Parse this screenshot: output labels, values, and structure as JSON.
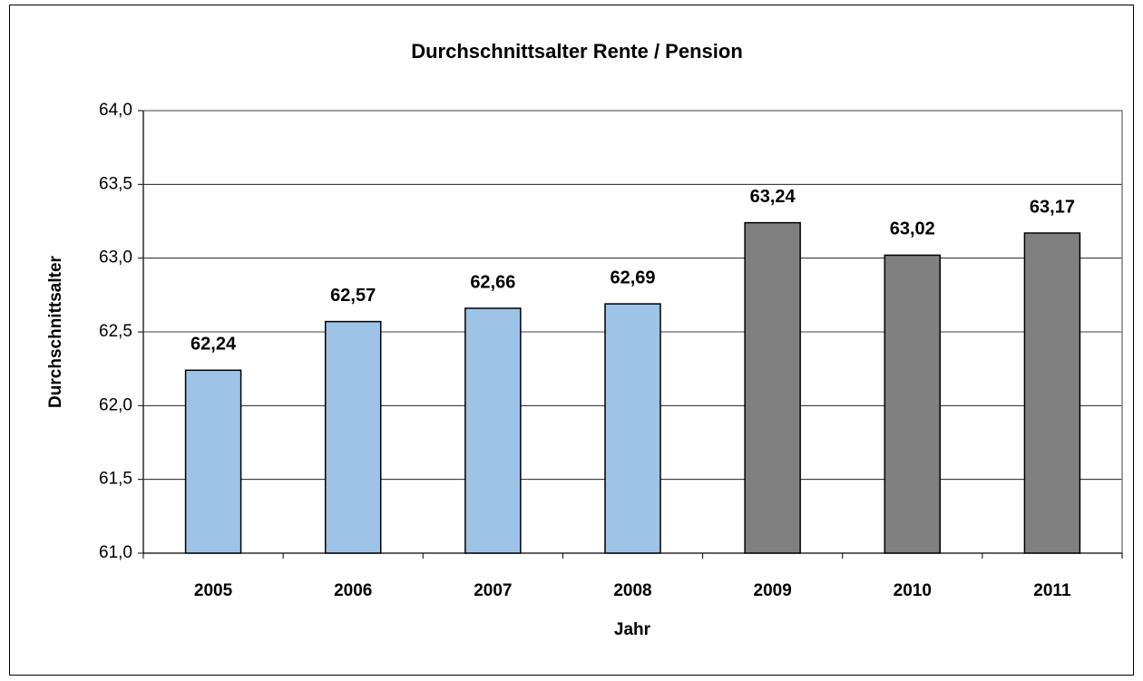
{
  "chart_data": {
    "type": "bar",
    "title": "Durchschnittsalter Rente / Pension",
    "x_label": "Jahr",
    "y_label": "Durchschnittsalter",
    "categories": [
      "2005",
      "2006",
      "2007",
      "2008",
      "2009",
      "2010",
      "2011"
    ],
    "values": [
      62.24,
      62.57,
      62.66,
      62.69,
      63.24,
      63.02,
      63.17
    ],
    "value_labels": [
      "62,24",
      "62,57",
      "62,66",
      "62,69",
      "63,24",
      "63,02",
      "63,17"
    ],
    "colors": [
      "#9dc3e6",
      "#9dc3e6",
      "#9dc3e6",
      "#9dc3e6",
      "#808080",
      "#808080",
      "#808080"
    ],
    "ylim": [
      61,
      64
    ],
    "yticks": [
      {
        "value": 61,
        "label": "61,0"
      },
      {
        "value": 61.5,
        "label": "61,5"
      },
      {
        "value": 62,
        "label": "62,0"
      },
      {
        "value": 62.5,
        "label": "62,5"
      },
      {
        "value": 63,
        "label": "63,0"
      },
      {
        "value": 63.5,
        "label": "63,5"
      },
      {
        "value": 64,
        "label": "64,0"
      }
    ],
    "grid": true
  }
}
